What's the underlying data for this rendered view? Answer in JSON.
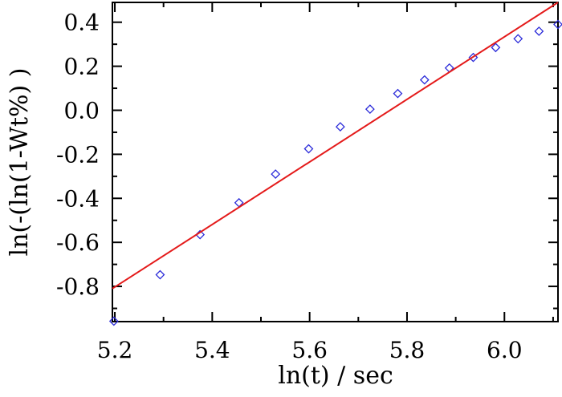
{
  "chart_data": {
    "type": "scatter",
    "title": "",
    "xlabel": "ln(t) / sec",
    "ylabel": "ln(-(ln(1-Wt%) )",
    "xlim": [
      5.195,
      6.11
    ],
    "ylim": [
      -0.96,
      0.49
    ],
    "x_ticks": [
      5.2,
      5.4,
      5.6,
      5.8,
      6.0
    ],
    "x_tick_labels": [
      "5.2",
      "5.4",
      "5.6",
      "5.8",
      "6.0"
    ],
    "y_ticks": [
      -0.8,
      -0.6,
      -0.4,
      -0.2,
      0.0,
      0.2,
      0.4
    ],
    "y_tick_labels": [
      "-0.8",
      "-0.6",
      "-0.4",
      "-0.2",
      "0.0",
      "0.2",
      "0.4"
    ],
    "grid": false,
    "series": [
      {
        "kind": "scatter",
        "marker": "diamond-open",
        "color": "#2b2bd9",
        "x": [
          5.198,
          5.293,
          5.375,
          5.455,
          5.53,
          5.598,
          5.663,
          5.724,
          5.781,
          5.836,
          5.887,
          5.936,
          5.982,
          6.028,
          6.071,
          6.11
        ],
        "y": [
          -0.958,
          -0.747,
          -0.565,
          -0.42,
          -0.29,
          -0.175,
          -0.075,
          0.005,
          0.076,
          0.138,
          0.192,
          0.24,
          0.285,
          0.325,
          0.359,
          0.39
        ]
      },
      {
        "kind": "line",
        "color": "#e41a1a",
        "x": [
          5.195,
          6.11
        ],
        "y": [
          -0.81,
          0.49
        ]
      }
    ]
  }
}
